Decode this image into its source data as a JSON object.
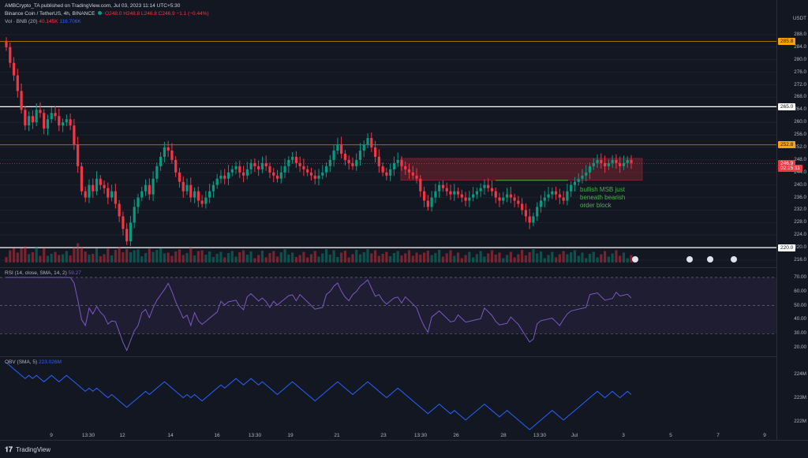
{
  "header": {
    "publisher": "AMBCrypto_TA published on TradingView.com, Jul 03, 2023 11:14 UTC+5:30",
    "symbol": "Binance Coin / TetherUS, 4h, BINANCE",
    "ohlc": {
      "o": "O248.0",
      "h": "H248.8",
      "l": "L246.8",
      "c": "C246.9",
      "chg": "−1.1 (−0.44%)"
    },
    "vol_label": "Vol · BNB (20)",
    "vol_value": "40.145K",
    "vol_ma": "116.706K"
  },
  "price_axis": {
    "currency": "USDT",
    "ticks": [
      "288.0",
      "284.0",
      "280.0",
      "276.0",
      "272.0",
      "268.0",
      "264.0",
      "260.0",
      "256.0",
      "252.0",
      "248.0",
      "244.0",
      "240.0",
      "236.0",
      "232.0",
      "228.0",
      "224.0",
      "220.0",
      "216.0"
    ],
    "tags": [
      {
        "label": "285.8",
        "color": "#f7a600",
        "text_color": "#131722",
        "value": 285.8
      },
      {
        "label": "265.0",
        "color": "#ffffff",
        "text_color": "#131722",
        "value": 265.0
      },
      {
        "label": "252.8",
        "color": "#f7a600",
        "text_color": "#131722",
        "value": 252.8
      },
      {
        "label": "246.9",
        "color": "#f23645",
        "text_color": "#ffffff",
        "value": 246.9
      },
      {
        "label": "02:15:11",
        "color": "#f23645",
        "text_color": "#ffffff",
        "value": 245.4
      },
      {
        "label": "220.0",
        "color": "#ffffff",
        "text_color": "#131722",
        "value": 220.0
      }
    ]
  },
  "annotation": {
    "text": [
      "bullish MSB just",
      "beneath bearish",
      "order block"
    ],
    "color": "#4caf50"
  },
  "rsi": {
    "label": "RSI (14, close, SMA, 14, 2)",
    "value": "59.27",
    "ticks": [
      "70.00",
      "60.00",
      "50.00",
      "40.00",
      "30.00",
      "20.00"
    ]
  },
  "obv": {
    "label": "OBV (SMA, 5)",
    "value": "223.026M",
    "ticks": [
      "224M",
      "223M",
      "222M"
    ]
  },
  "x_axis": [
    "9",
    "13:30",
    "12",
    "14",
    "16",
    "13:30",
    "19",
    "21",
    "23",
    "13:30",
    "26",
    "28",
    "13:30",
    "Jul",
    "3",
    "5",
    "7",
    "9"
  ],
  "footer": {
    "brand": "TradingView"
  },
  "chart_data": {
    "type": "candlestick",
    "symbol": "BNB/USDT",
    "timeframe": "4h",
    "ylim": [
      214,
      290
    ],
    "levels": [
      285.8,
      265.0,
      252.8,
      220.0
    ],
    "last_price": 246.9,
    "order_block": [
      241.5,
      248.5
    ],
    "closes": [
      284,
      279,
      275,
      270,
      264,
      259,
      262,
      260,
      264,
      263,
      258,
      261,
      263,
      262,
      259,
      260,
      261,
      259,
      253,
      246,
      238,
      236,
      240,
      238,
      242,
      240,
      239,
      236,
      238,
      234,
      230,
      226,
      222,
      228,
      233,
      236,
      238,
      240,
      237,
      242,
      246,
      249,
      252,
      251,
      248,
      244,
      241,
      238,
      240,
      236,
      238,
      235,
      234,
      236,
      238,
      240,
      242,
      243,
      242,
      244,
      245,
      246,
      244,
      243,
      245,
      247,
      246,
      245,
      247,
      246,
      244,
      243,
      242,
      244,
      246,
      248,
      249,
      247,
      246,
      245,
      244,
      243,
      242,
      243,
      244,
      246,
      248,
      251,
      253,
      250,
      248,
      247,
      246,
      248,
      251,
      253,
      255,
      252,
      249,
      246,
      244,
      243,
      245,
      247,
      248,
      246,
      245,
      244,
      243,
      242,
      238,
      235,
      233,
      236,
      238,
      240,
      239,
      238,
      237,
      238,
      237,
      236,
      235,
      236,
      237,
      238,
      239,
      240,
      239,
      238,
      236,
      235,
      236,
      237,
      236,
      235,
      234,
      232,
      230,
      228,
      230,
      233,
      235,
      236,
      237,
      238,
      237,
      236,
      235,
      238,
      240,
      241,
      242,
      243,
      244,
      246,
      247,
      248,
      247,
      246,
      247,
      248,
      247,
      246,
      247,
      248,
      247
    ]
  }
}
